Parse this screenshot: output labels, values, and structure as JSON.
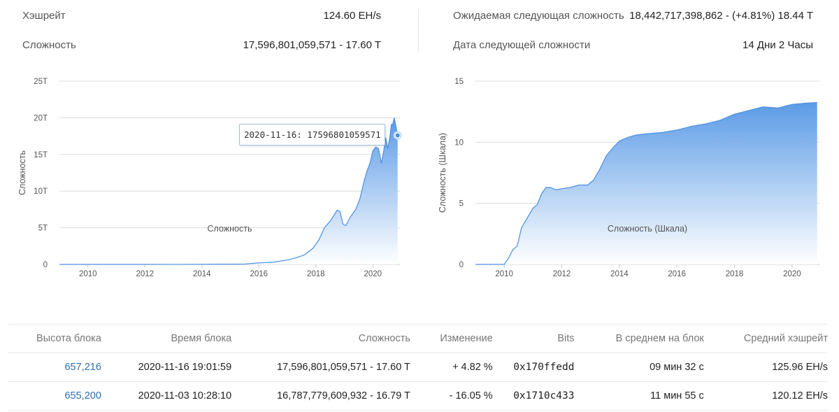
{
  "stats": {
    "hashrate_label": "Хэшрейт",
    "hashrate_value": "124.60 EH/s",
    "difficulty_label": "Сложность",
    "difficulty_value_full": "17,596,801,059,571",
    "difficulty_value_sep": " - ",
    "difficulty_value_short": "17.60 T",
    "next_difficulty_label": "Ожидаемая следующая сложность",
    "next_difficulty_value": "18,442,717,398,862 - (+4.81%) 18.44 T",
    "next_difficulty_date_label": "Дата следующей сложности",
    "next_difficulty_date_value": "14 Дни 2 Часы"
  },
  "tooltip": {
    "text": "2020-11-16: 17596801059571"
  },
  "colors": {
    "area_top": "#5b9be6",
    "area_bottom": "#ffffff",
    "line": "#4a8fe0",
    "link": "#2f6fb0",
    "positive": "#1d8f2f",
    "negative": "#d8232a"
  },
  "chart_data": [
    {
      "type": "area",
      "xlabel": "Сложность",
      "ylabel": "Сложность",
      "x_ticks": [
        "2010",
        "2012",
        "2014",
        "2016",
        "2018",
        "2020"
      ],
      "y_ticks": [
        "0",
        "5T",
        "10T",
        "15T",
        "20T",
        "25T"
      ],
      "xlim": [
        2009.0,
        2020.95
      ],
      "ylim": [
        0,
        25
      ],
      "y_unit": "T",
      "grid": true,
      "x": [
        2009.0,
        2012.0,
        2014.0,
        2015.5,
        2016.0,
        2016.5,
        2017.0,
        2017.3,
        2017.6,
        2017.9,
        2018.1,
        2018.3,
        2018.5,
        2018.75,
        2018.85,
        2018.95,
        2019.05,
        2019.2,
        2019.4,
        2019.55,
        2019.7,
        2019.8,
        2019.9,
        2020.0,
        2020.1,
        2020.2,
        2020.3,
        2020.38,
        2020.45,
        2020.52,
        2020.6,
        2020.65,
        2020.7,
        2020.75,
        2020.8,
        2020.87
      ],
      "values": [
        0.0,
        0.0,
        0.01,
        0.05,
        0.2,
        0.3,
        0.6,
        0.9,
        1.3,
        2.2,
        3.3,
        5.0,
        5.9,
        7.4,
        7.2,
        5.5,
        5.3,
        6.4,
        7.5,
        9.0,
        11.5,
        12.8,
        13.8,
        15.5,
        16.0,
        15.8,
        13.8,
        15.5,
        17.3,
        15.8,
        17.4,
        19.1,
        19.1,
        20.0,
        19.0,
        17.6
      ]
    },
    {
      "type": "area",
      "xlabel": "Сложность (Шкала)",
      "ylabel": "Сложность (Шкала)",
      "x_ticks": [
        "2010",
        "2012",
        "2014",
        "2016",
        "2018",
        "2020"
      ],
      "y_ticks": [
        "0",
        "5",
        "10",
        "15"
      ],
      "xlim": [
        2009.0,
        2020.95
      ],
      "ylim": [
        0,
        15
      ],
      "grid": true,
      "x": [
        2009.0,
        2010.0,
        2010.15,
        2010.3,
        2010.45,
        2010.6,
        2010.8,
        2011.0,
        2011.15,
        2011.3,
        2011.45,
        2011.6,
        2011.8,
        2012.0,
        2012.3,
        2012.6,
        2012.9,
        2013.1,
        2013.3,
        2013.55,
        2013.8,
        2014.0,
        2014.3,
        2014.6,
        2015.0,
        2015.5,
        2016.0,
        2016.5,
        2017.0,
        2017.5,
        2018.0,
        2018.5,
        2019.0,
        2019.5,
        2020.0,
        2020.5,
        2020.87
      ],
      "values": [
        0.0,
        0.0,
        0.5,
        1.2,
        1.5,
        3.0,
        3.8,
        4.6,
        4.9,
        5.8,
        6.3,
        6.3,
        6.1,
        6.2,
        6.3,
        6.5,
        6.5,
        6.9,
        7.7,
        8.9,
        9.6,
        10.1,
        10.4,
        10.6,
        10.7,
        10.8,
        11.0,
        11.3,
        11.5,
        11.8,
        12.3,
        12.6,
        12.9,
        12.8,
        13.1,
        13.2,
        13.25
      ]
    }
  ],
  "table": {
    "headers": [
      "Высота блока",
      "Время блока",
      "Сложность",
      "Изменение",
      "Bits",
      "В среднем на блок",
      "Средний хэшрейт"
    ],
    "rows": [
      {
        "height": "657,216",
        "time": "2020-11-16 19:01:59",
        "difficulty": "17,596,801,059,571 - 17.60 T",
        "change": "+ 4.82 %",
        "bits": "0x170ffedd",
        "avg": "09 мин 32 с",
        "hashrate": "125.96 EH/s"
      },
      {
        "height": "655,200",
        "time": "2020-11-03 10:28:10",
        "difficulty": "16,787,779,609,932 - 16.79 T",
        "change": "- 16.05 %",
        "bits": "0x1710c433",
        "avg": "11 мин 55 с",
        "hashrate": "120.12 EH/s"
      }
    ]
  }
}
